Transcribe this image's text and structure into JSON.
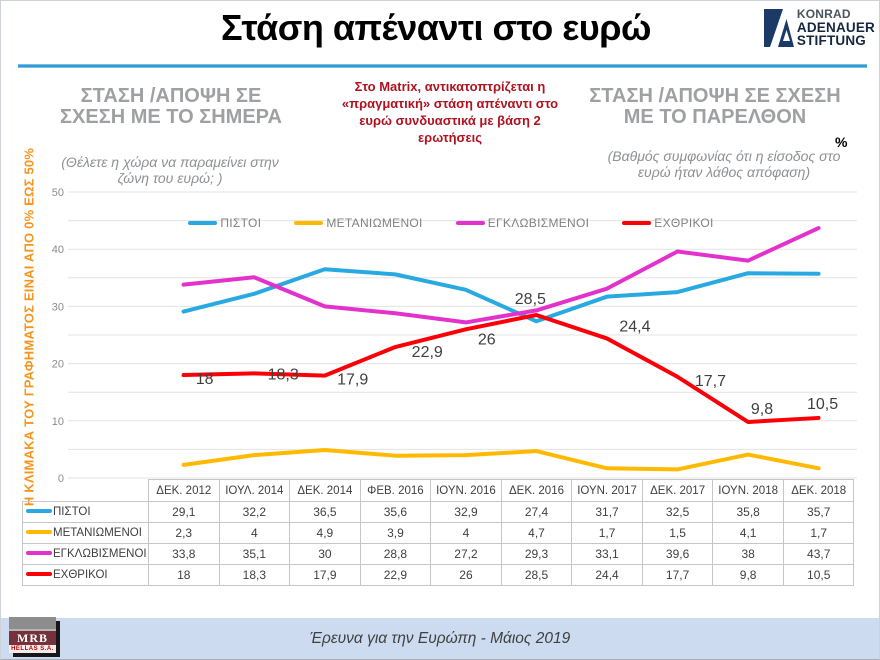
{
  "title": "Στάση απέναντι στο ευρώ",
  "brand": {
    "line1": "KONRAD",
    "line2": "ADENAUER",
    "line3": "STIFTUNG"
  },
  "panels": {
    "left": {
      "title": "ΣΤΑΣΗ /ΑΠΟΨΗ ΣΕ ΣΧΕΣΗ ΜΕ ΤΟ ΣΗΜΕΡΑ",
      "subtitle": "(Θέλετε η χώρα να παραμείνει στην ζώνη του ευρώ; )"
    },
    "center_note": "Στο Matrix, αντικατοπτρίζεται η «πραγματική» στάση απέναντι στο ευρώ συνδυαστικά με βάση 2 ερωτήσεις",
    "right": {
      "title": "ΣΤΑΣΗ /ΑΠΟΨΗ ΣΕ ΣΧΕΣΗ ΜΕ ΤΟ ΠΑΡΕΛΘΟΝ",
      "subtitle": "(Βαθμός συμφωνίας ότι η είσοδος στο ευρώ ήταν λάθος απόφαση)",
      "percent_sign": "%"
    }
  },
  "axis_note": "Η ΚΛΙΜΑΚΑ ΤΟΥ ΓΡΑΦΗΜΑΤΟΣ ΕΙΝΑΙ ΑΠΟ 0% ΕΩΣ 50%",
  "footer": {
    "caption": "Έρευνα για την Ευρώπη - Μάιος 2019",
    "mrb_name": "MRB",
    "mrb_sub": "HELLAS S.A."
  },
  "chart_data": {
    "type": "line",
    "title": "Στάση απέναντι στο ευρώ",
    "categories": [
      "ΔΕΚ. 2012",
      "ΙΟΥΛ. 2014",
      "ΔΕΚ. 2014",
      "ΦΕΒ. 2016",
      "ΙΟΥΝ. 2016",
      "ΔΕΚ. 2016",
      "ΙΟΥΝ. 2017",
      "ΔΕΚ. 2017",
      "ΙΟΥΝ. 2018",
      "ΔΕΚ. 2018"
    ],
    "series": [
      {
        "name": "ΠΙΣΤΟΙ",
        "color": "#29a9e1",
        "values": [
          29.1,
          32.2,
          36.5,
          35.6,
          32.9,
          27.4,
          31.7,
          32.5,
          35.8,
          35.7
        ],
        "display": [
          "29,1",
          "32,2",
          "36,5",
          "35,6",
          "32,9",
          "27,4",
          "31,7",
          "32,5",
          "35,8",
          "35,7"
        ]
      },
      {
        "name": "ΜΕΤΑΝΙΩΜΕΝΟΙ",
        "color": "#ffb900",
        "values": [
          2.3,
          4,
          4.9,
          3.9,
          4,
          4.7,
          1.7,
          1.5,
          4.1,
          1.7
        ],
        "display": [
          "2,3",
          "4",
          "4,9",
          "3,9",
          "4",
          "4,7",
          "1,7",
          "1,5",
          "4,1",
          "1,7"
        ]
      },
      {
        "name": "ΕΓΚΛΩΒΙΣΜΕΝΟΙ",
        "color": "#e332cc",
        "values": [
          33.8,
          35.1,
          30,
          28.8,
          27.2,
          29.3,
          33.1,
          39.6,
          38,
          43.7
        ],
        "display": [
          "33,8",
          "35,1",
          "30",
          "28,8",
          "27,2",
          "29,3",
          "33,1",
          "39,6",
          "38",
          "43,7"
        ]
      },
      {
        "name": "ΕΧΘΡΙΚΟΙ",
        "color": "#fb0007",
        "values": [
          18,
          18.3,
          17.9,
          22.9,
          26,
          28.5,
          24.4,
          17.7,
          9.8,
          10.5
        ],
        "display": [
          "18",
          "18,3",
          "17,9",
          "22,9",
          "26",
          "28,5",
          "24,4",
          "17,7",
          "9,8",
          "10,5"
        ],
        "point_labels": [
          "18",
          "18,3",
          "17,9",
          "22,9",
          "26",
          "28,5",
          "24,4",
          "17,7",
          "9,8",
          "10,5"
        ]
      }
    ],
    "ylim": [
      0,
      50
    ],
    "yticks": [
      0,
      10,
      20,
      30,
      40,
      50
    ],
    "grid_step": 5,
    "grid": true,
    "legend_position": "top",
    "data_table_below": true
  }
}
